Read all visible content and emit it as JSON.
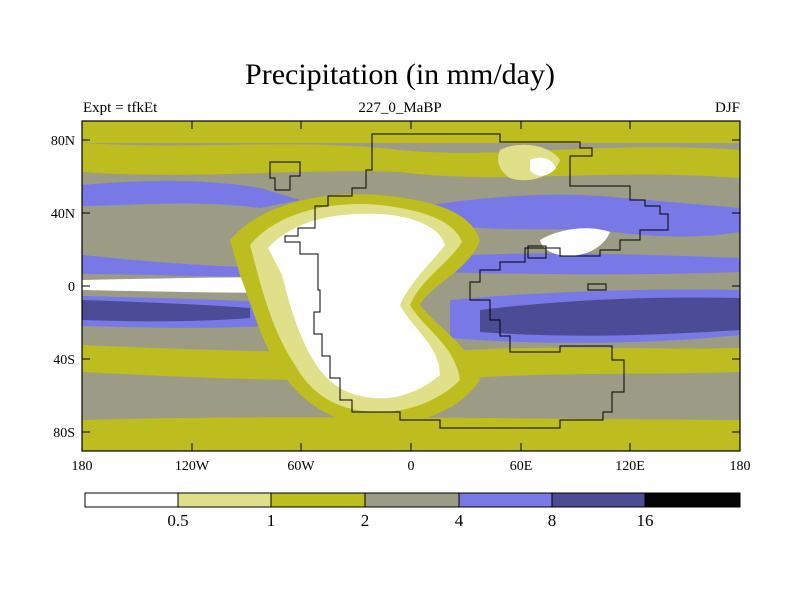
{
  "title": "Precipitation (in mm/day)",
  "subtitle_left": "Expt = tfkEt",
  "subtitle_center": "227_0_MaBP",
  "subtitle_right": "DJF",
  "lat_ticks": [
    "80N",
    "40N",
    "0",
    "40S",
    "80S"
  ],
  "lon_ticks": [
    "180",
    "120W",
    "60W",
    "0",
    "60E",
    "120E",
    "180"
  ],
  "colorbar": {
    "levels": [
      "0.5",
      "1",
      "2",
      "4",
      "8",
      "16"
    ],
    "colors": [
      "#ffffff",
      "#e0e08a",
      "#bdbd20",
      "#9b9b86",
      "#7878e6",
      "#4c4c96",
      "#050505"
    ]
  }
}
